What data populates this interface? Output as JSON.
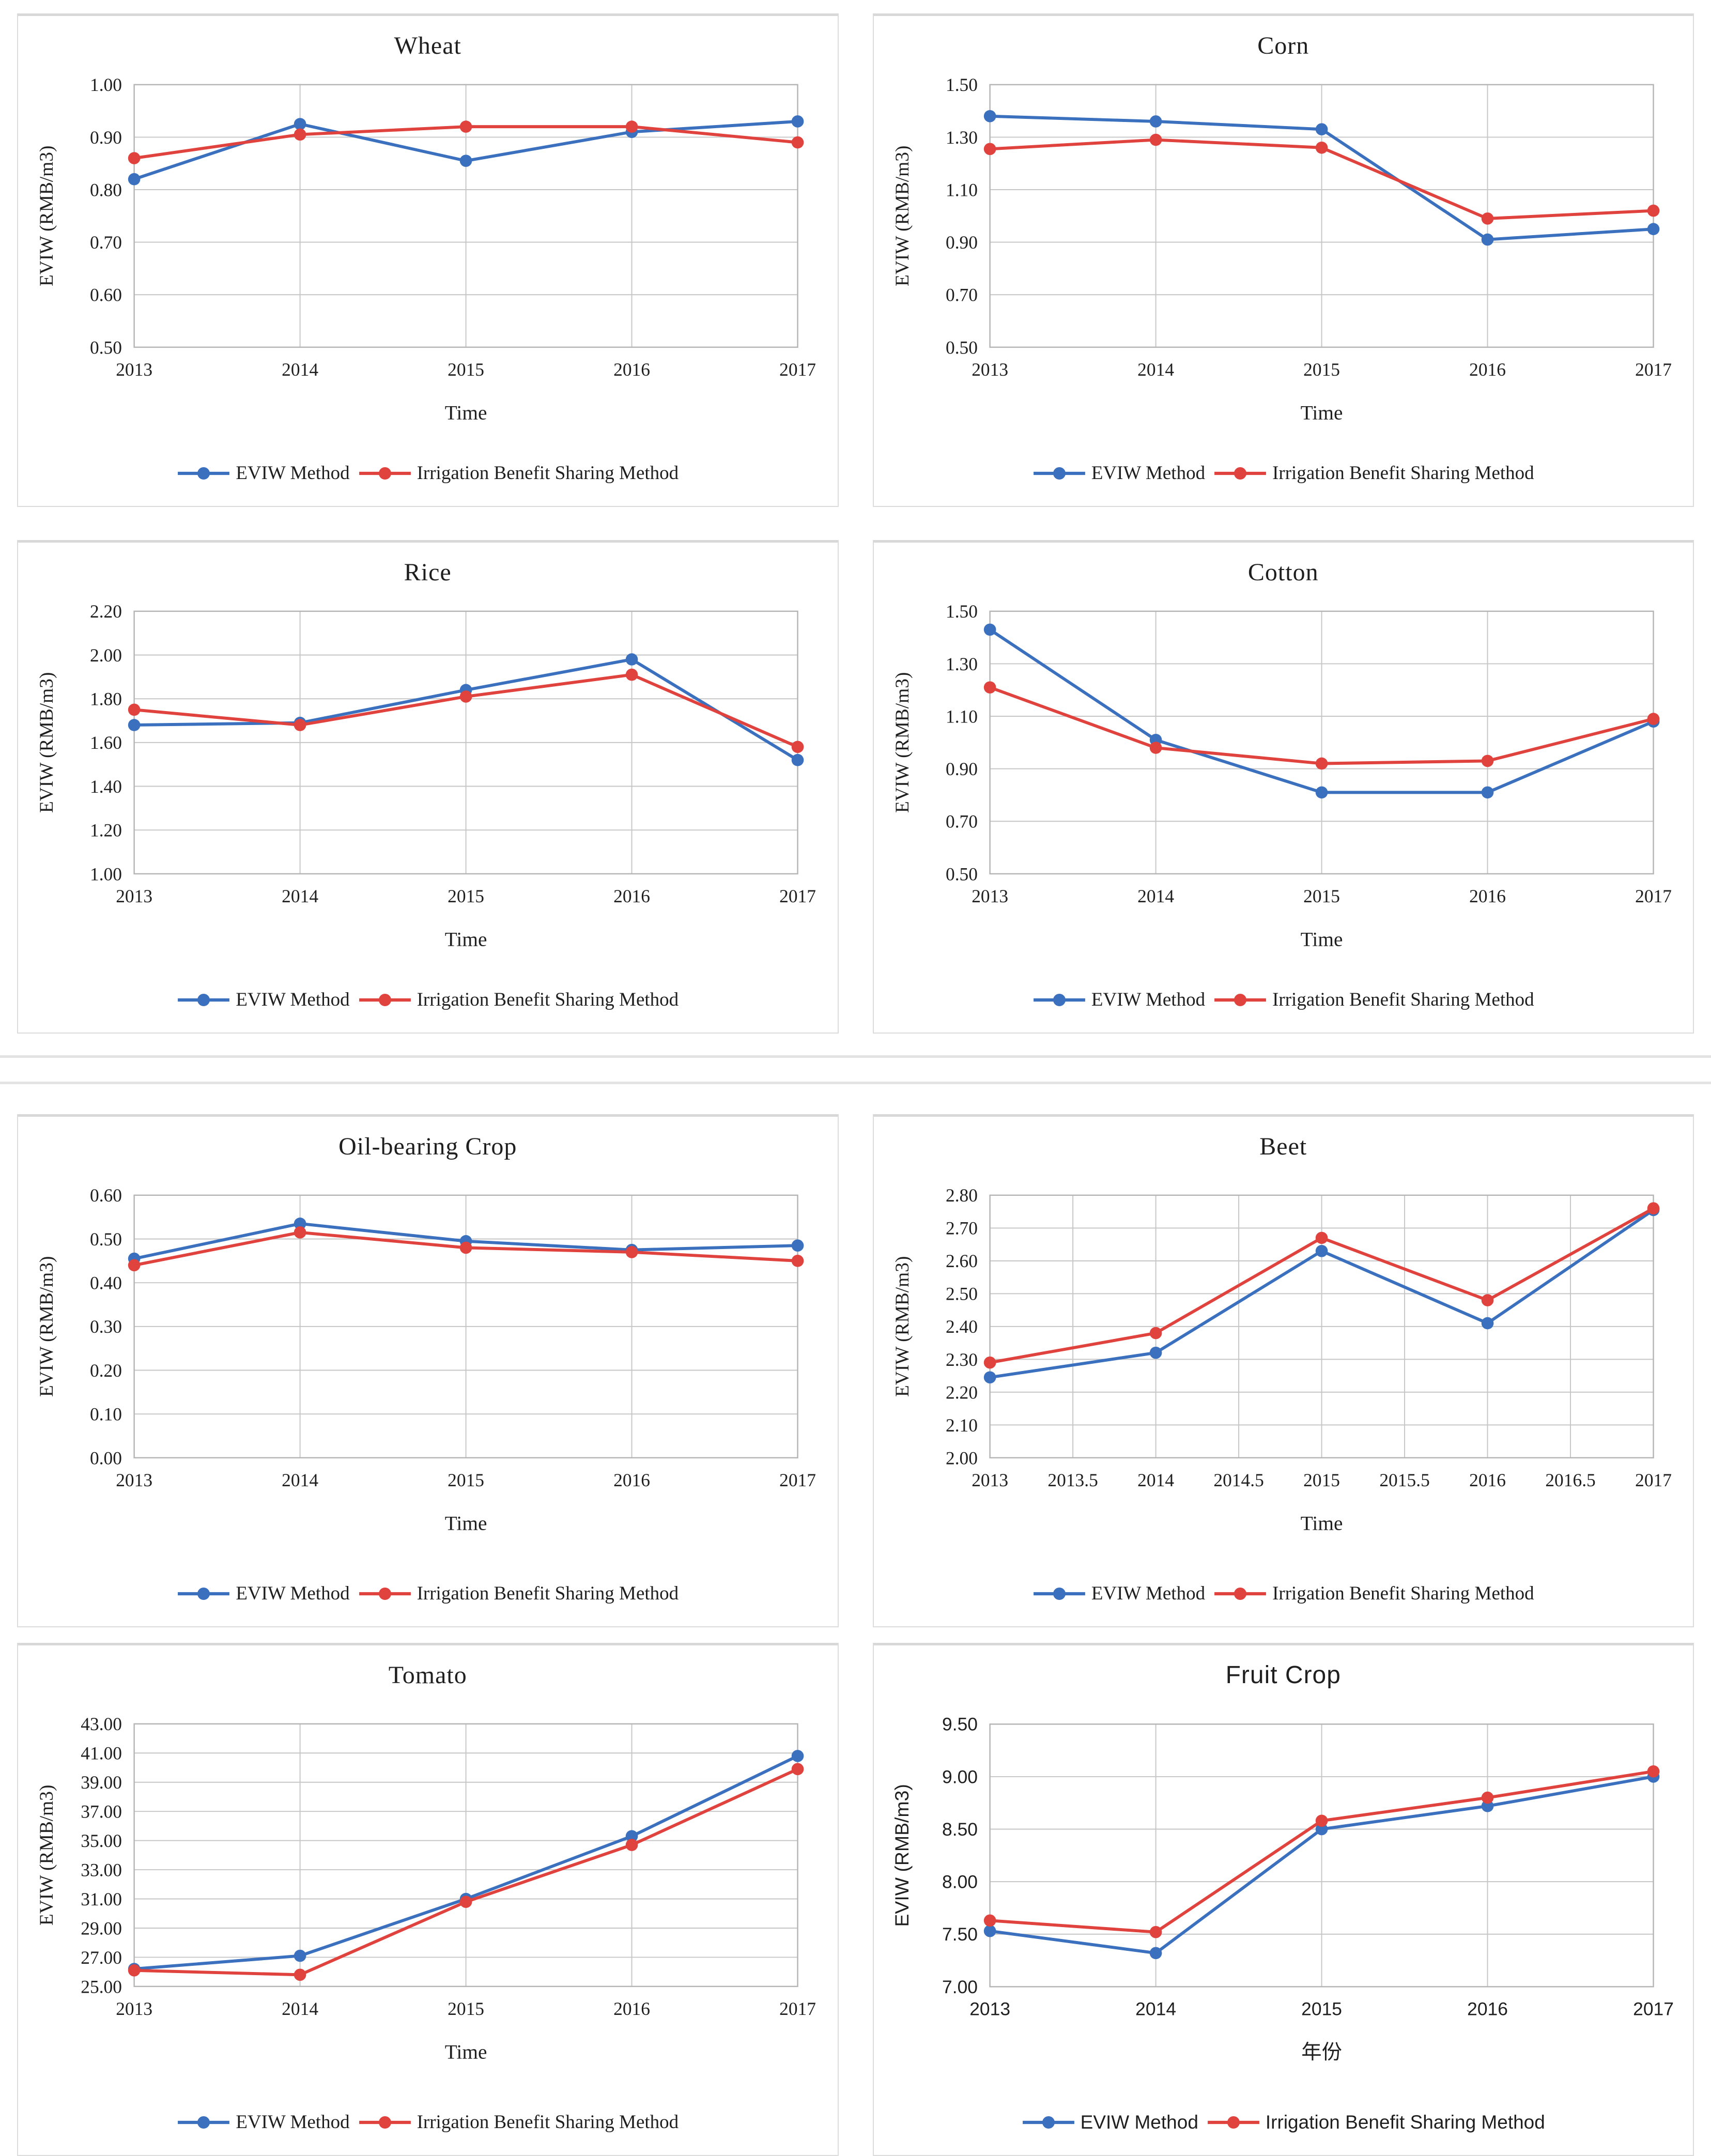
{
  "page": {
    "background": "#ffffff"
  },
  "legend": {
    "eviw_label": "EVIW Method",
    "ibs_label": "Irrigation Benefit Sharing Method"
  },
  "colors": {
    "eviw": "#3a70bd",
    "ibs": "#e0423e",
    "grid": "#c6c6c6",
    "border": "#b5b5b5",
    "text": "#1f1f1f"
  },
  "chart_data": [
    {
      "type": "line",
      "title": "Wheat",
      "xlabel": "Time",
      "ylabel": "EVIW（RMB/m3）",
      "ylim": [
        0.5,
        1.0
      ],
      "y_ticks": [
        "0.50",
        "0.60",
        "0.70",
        "0.80",
        "0.90",
        "1.00"
      ],
      "x_ticks": [
        "2013",
        "2014",
        "2015",
        "2016",
        "2017"
      ],
      "x": [
        2013,
        2014,
        2015,
        2016,
        2017
      ],
      "grid": true,
      "legend_position": "bottom",
      "series": [
        {
          "name": "EVIW Method",
          "color_key": "eviw",
          "values": [
            0.82,
            0.925,
            0.855,
            0.91,
            0.93
          ]
        },
        {
          "name": "Irrigation Benefit Sharing Method",
          "color_key": "ibs",
          "values": [
            0.86,
            0.905,
            0.92,
            0.92,
            0.89
          ]
        }
      ]
    },
    {
      "type": "line",
      "title": "Corn",
      "xlabel": "Time",
      "ylabel": "EVIW（RMB/m3）",
      "ylim": [
        0.5,
        1.5
      ],
      "y_ticks": [
        "0.50",
        "0.70",
        "0.90",
        "1.10",
        "1.30",
        "1.50"
      ],
      "x_ticks": [
        "2013",
        "2014",
        "2015",
        "2016",
        "2017"
      ],
      "x": [
        2013,
        2014,
        2015,
        2016,
        2017
      ],
      "grid": true,
      "legend_position": "bottom",
      "series": [
        {
          "name": "EVIW Method",
          "color_key": "eviw",
          "values": [
            1.38,
            1.36,
            1.33,
            0.91,
            0.95
          ]
        },
        {
          "name": "Irrigation Benefit Sharing Method",
          "color_key": "ibs",
          "values": [
            1.255,
            1.29,
            1.26,
            0.99,
            1.02
          ]
        }
      ]
    },
    {
      "type": "line",
      "title": "Rice",
      "xlabel": "Time",
      "ylabel": "EVIW（RMB/m3）",
      "ylim": [
        1.0,
        2.2
      ],
      "y_ticks": [
        "1.00",
        "1.20",
        "1.40",
        "1.60",
        "1.80",
        "2.00",
        "2.20"
      ],
      "x_ticks": [
        "2013",
        "2014",
        "2015",
        "2016",
        "2017"
      ],
      "x": [
        2013,
        2014,
        2015,
        2016,
        2017
      ],
      "grid": true,
      "legend_position": "bottom",
      "series": [
        {
          "name": "EVIW Method",
          "color_key": "eviw",
          "values": [
            1.68,
            1.69,
            1.84,
            1.98,
            1.52
          ]
        },
        {
          "name": "Irrigation Benefit Sharing Method",
          "color_key": "ibs",
          "values": [
            1.75,
            1.68,
            1.81,
            1.91,
            1.58
          ]
        }
      ]
    },
    {
      "type": "line",
      "title": "Cotton",
      "xlabel": "Time",
      "ylabel": "EVIW（RMB/m3）",
      "ylim": [
        0.5,
        1.5
      ],
      "y_ticks": [
        "0.50",
        "0.70",
        "0.90",
        "1.10",
        "1.30",
        "1.50"
      ],
      "x_ticks": [
        "2013",
        "2014",
        "2015",
        "2016",
        "2017"
      ],
      "x": [
        2013,
        2014,
        2015,
        2016,
        2017
      ],
      "grid": true,
      "legend_position": "bottom",
      "series": [
        {
          "name": "EVIW Method",
          "color_key": "eviw",
          "values": [
            1.43,
            1.01,
            0.81,
            0.81,
            1.08
          ]
        },
        {
          "name": "Irrigation Benefit Sharing Method",
          "color_key": "ibs",
          "values": [
            1.21,
            0.98,
            0.92,
            0.93,
            1.09
          ]
        }
      ]
    },
    {
      "type": "line",
      "title": "Oil-bearing Crop",
      "xlabel": "Time",
      "ylabel": "EVIW（RMB/m3）",
      "ylim": [
        0.0,
        0.6
      ],
      "y_ticks": [
        "0.00",
        "0.10",
        "0.20",
        "0.30",
        "0.40",
        "0.50",
        "0.60"
      ],
      "x_ticks": [
        "2013",
        "2014",
        "2015",
        "2016",
        "2017"
      ],
      "x": [
        2013,
        2014,
        2015,
        2016,
        2017
      ],
      "grid": true,
      "legend_position": "bottom",
      "series": [
        {
          "name": "EVIW Method",
          "color_key": "eviw",
          "values": [
            0.455,
            0.535,
            0.495,
            0.475,
            0.485
          ]
        },
        {
          "name": "Irrigation Benefit Sharing Method",
          "color_key": "ibs",
          "values": [
            0.44,
            0.515,
            0.48,
            0.47,
            0.45
          ]
        }
      ]
    },
    {
      "type": "line",
      "title": "Beet",
      "xlabel": "Time",
      "ylabel": "EVIW（RMB/m3）",
      "ylim": [
        2.0,
        2.8
      ],
      "y_ticks": [
        "2.00",
        "2.10",
        "2.20",
        "2.30",
        "2.40",
        "2.50",
        "2.60",
        "2.70",
        "2.80"
      ],
      "x_ticks": [
        "2013",
        "2013.5",
        "2014",
        "2014.5",
        "2015",
        "2015.5",
        "2016",
        "2016.5",
        "2017"
      ],
      "x": [
        2013,
        2014,
        2015,
        2016,
        2017
      ],
      "grid": true,
      "legend_position": "bottom",
      "series": [
        {
          "name": "EVIW Method",
          "color_key": "eviw",
          "values": [
            2.245,
            2.32,
            2.63,
            2.41,
            2.755
          ]
        },
        {
          "name": "Irrigation Benefit Sharing Method",
          "color_key": "ibs",
          "values": [
            2.29,
            2.38,
            2.67,
            2.48,
            2.76
          ]
        }
      ]
    },
    {
      "type": "line",
      "title": "Tomato",
      "xlabel": "Time",
      "ylabel": "EVIW（RMB/m3）",
      "ylim": [
        25.0,
        43.0
      ],
      "y_ticks": [
        "25.00",
        "27.00",
        "29.00",
        "31.00",
        "33.00",
        "35.00",
        "37.00",
        "39.00",
        "41.00",
        "43.00"
      ],
      "x_ticks": [
        "2013",
        "2014",
        "2015",
        "2016",
        "2017"
      ],
      "x": [
        2013,
        2014,
        2015,
        2016,
        2017
      ],
      "grid": true,
      "legend_position": "bottom",
      "series": [
        {
          "name": "EVIW Method",
          "color_key": "eviw",
          "values": [
            26.2,
            27.1,
            31.0,
            35.3,
            40.8
          ]
        },
        {
          "name": "Irrigation Benefit Sharing Method",
          "color_key": "ibs",
          "values": [
            26.1,
            25.8,
            30.8,
            34.7,
            39.9
          ]
        }
      ]
    },
    {
      "type": "line",
      "title": "Fruit Crop",
      "xlabel": "年份",
      "ylabel": "EVIW（RMB/m3）",
      "variant": "sans",
      "ylim": [
        7.0,
        9.5
      ],
      "y_ticks": [
        "7.00",
        "7.50",
        "8.00",
        "8.50",
        "9.00",
        "9.50"
      ],
      "x_ticks": [
        "2013",
        "2014",
        "2015",
        "2016",
        "2017"
      ],
      "x": [
        2013,
        2014,
        2015,
        2016,
        2017
      ],
      "grid": true,
      "legend_position": "bottom",
      "series": [
        {
          "name": "EVIW Method",
          "color_key": "eviw",
          "values": [
            7.53,
            7.32,
            8.5,
            8.72,
            9.0
          ]
        },
        {
          "name": "Irrigation Benefit Sharing Method",
          "color_key": "ibs",
          "values": [
            7.63,
            7.52,
            8.58,
            8.8,
            9.05
          ]
        }
      ]
    }
  ]
}
